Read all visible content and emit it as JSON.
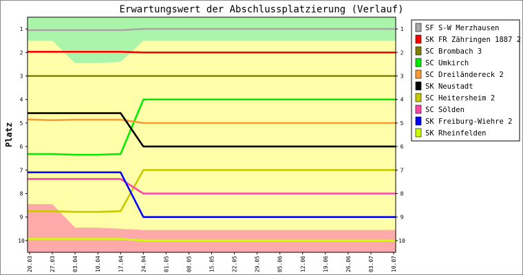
{
  "chart_data": {
    "type": "line",
    "title": "Erwartungswert der Abschlussplatzierung (Verlauf)",
    "ylabel": "Platz",
    "xlabel": "",
    "ylim": [
      0.5,
      10.5
    ],
    "y_inverted": true,
    "y_ticks": [
      "1",
      "2",
      "3",
      "4",
      "5",
      "6",
      "7",
      "8",
      "9",
      "10"
    ],
    "x_ticks": [
      "20.03",
      "27.03",
      "03.04",
      "10.04",
      "17.04",
      "24.04",
      "01.05",
      "08.05",
      "15.05",
      "22.05",
      "29.05",
      "05.06",
      "12.06",
      "19.06",
      "26.06",
      "03.07",
      "10.07"
    ],
    "legend_position": "top-right",
    "background_zones": [
      {
        "name": "aufstieg",
        "color": "#aaf5aa",
        "upper": [
          1.5,
          1.5,
          2.45,
          2.45,
          2.4,
          1.5,
          1.5,
          1.5,
          1.5,
          1.5,
          1.5,
          1.5,
          1.5,
          1.5,
          1.5,
          1.5,
          1.5
        ]
      },
      {
        "name": "mitte",
        "color": "#ffffaa"
      },
      {
        "name": "abstieg",
        "color": "#ffaaaa",
        "lower": [
          8.45,
          8.45,
          9.45,
          9.45,
          9.5,
          9.55,
          9.55,
          9.55,
          9.55,
          9.55,
          9.55,
          9.55,
          9.55,
          9.55,
          9.55,
          9.55,
          9.55
        ]
      }
    ],
    "series": [
      {
        "name": "SF S-W Merzhausen",
        "color": "#a8a8a8",
        "values": [
          1.05,
          1.05,
          1.05,
          1.05,
          1.05,
          1.0,
          1.0,
          1.0,
          1.0,
          1.0,
          1.0,
          1.0,
          1.0,
          1.0,
          1.0,
          1.0,
          1.0
        ]
      },
      {
        "name": "SK FR Zähringen 1887 2",
        "color": "#ff0000",
        "values": [
          1.97,
          1.97,
          1.97,
          1.97,
          1.97,
          2.0,
          2.0,
          2.0,
          2.0,
          2.0,
          2.0,
          2.0,
          2.0,
          2.0,
          2.0,
          2.0,
          2.0
        ]
      },
      {
        "name": "SC Brombach 3",
        "color": "#808000",
        "values": [
          3,
          3,
          3,
          3,
          3,
          3,
          3,
          3,
          3,
          3,
          3,
          3,
          3,
          3,
          3,
          3,
          3
        ]
      },
      {
        "name": "SC Umkirch",
        "color": "#00ee00",
        "values": [
          6.32,
          6.32,
          6.35,
          6.35,
          6.32,
          4.0,
          4.0,
          4.0,
          4.0,
          4.0,
          4.0,
          4.0,
          4.0,
          4.0,
          4.0,
          4.0,
          4.0
        ]
      },
      {
        "name": "SC Dreiländereck 2",
        "color": "#ff9933",
        "values": [
          4.85,
          4.88,
          4.86,
          4.86,
          4.86,
          5.0,
          5.0,
          5.0,
          5.0,
          5.0,
          5.0,
          5.0,
          5.0,
          5.0,
          5.0,
          5.0,
          5.0
        ]
      },
      {
        "name": "SK Neustadt",
        "color": "#000000",
        "values": [
          4.58,
          4.58,
          4.58,
          4.58,
          4.58,
          6.0,
          6.0,
          6.0,
          6.0,
          6.0,
          6.0,
          6.0,
          6.0,
          6.0,
          6.0,
          6.0,
          6.0
        ]
      },
      {
        "name": "SC Heitersheim 2",
        "color": "#c8c800",
        "values": [
          8.75,
          8.75,
          8.78,
          8.78,
          8.75,
          7.0,
          7.0,
          7.0,
          7.0,
          7.0,
          7.0,
          7.0,
          7.0,
          7.0,
          7.0,
          7.0,
          7.0
        ]
      },
      {
        "name": "SC Sölden",
        "color": "#ff44aa",
        "values": [
          7.38,
          7.38,
          7.38,
          7.38,
          7.38,
          8.0,
          8.0,
          8.0,
          8.0,
          8.0,
          8.0,
          8.0,
          8.0,
          8.0,
          8.0,
          8.0,
          8.0
        ]
      },
      {
        "name": "SK Freiburg-Wiehre 2",
        "color": "#0000ff",
        "values": [
          7.1,
          7.1,
          7.1,
          7.1,
          7.1,
          9.0,
          9.0,
          9.0,
          9.0,
          9.0,
          9.0,
          9.0,
          9.0,
          9.0,
          9.0,
          9.0,
          9.0
        ]
      },
      {
        "name": "SK Rheinfelden",
        "color": "#ccff00",
        "values": [
          9.93,
          9.93,
          9.93,
          9.93,
          9.93,
          10.0,
          10.0,
          10.0,
          10.0,
          10.0,
          10.0,
          10.0,
          10.0,
          10.0,
          10.0,
          10.0,
          10.0
        ]
      }
    ]
  }
}
